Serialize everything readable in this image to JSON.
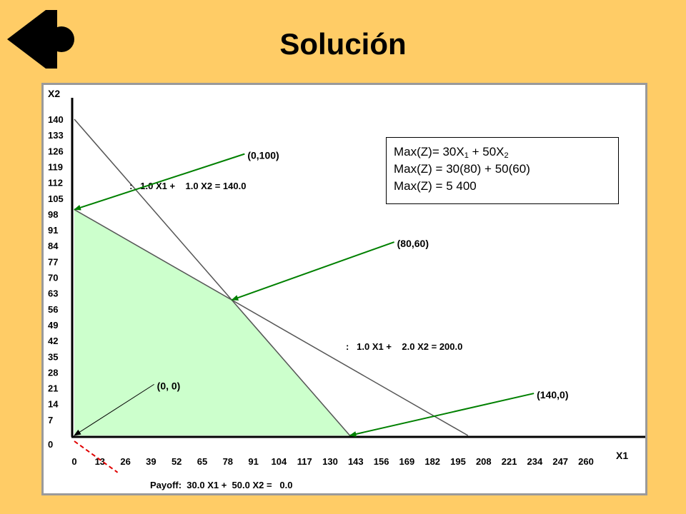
{
  "slide": {
    "title": "Solución"
  },
  "info_box": {
    "line1": {
      "pre": "Max(Z)= 30X",
      "sub1": "1",
      "mid": " + 50X",
      "sub2": "2"
    },
    "line2": "Max(Z) = 30(80) + 50(60)",
    "line3": "Max(Z) = 5 400"
  },
  "chart_data": {
    "type": "line",
    "xlabel": "X1",
    "ylabel": "X2",
    "xlim": [
      0,
      260
    ],
    "ylim": [
      0,
      140
    ],
    "xticks": [
      "0",
      "13",
      "26",
      "39",
      "52",
      "65",
      "78",
      "91",
      "104",
      "117",
      "130",
      "143",
      "156",
      "169",
      "182",
      "195",
      "208",
      "221",
      "234",
      "247",
      "260"
    ],
    "yticks": [
      "0",
      "7",
      "14",
      "21",
      "28",
      "35",
      "42",
      "49",
      "56",
      "63",
      "70",
      "77",
      "84",
      "91",
      "98",
      "105",
      "112",
      "119",
      "126",
      "133",
      "140"
    ],
    "constraints": [
      {
        "label": ":   1.0 X1 +    1.0 X2 = 140.0",
        "x": [
          0,
          140
        ],
        "y": [
          140,
          0
        ],
        "label_at": [
          28,
          109
        ]
      },
      {
        "label": ":   1.0 X1 +    2.0 X2 = 200.0",
        "x": [
          0,
          200
        ],
        "y": [
          100,
          0
        ],
        "label_at": [
          138,
          38
        ]
      }
    ],
    "payoff": {
      "label": "Payoff:  30.0 X1 +  50.0 X2 =   0.0",
      "x": [
        0,
        22
      ],
      "y": [
        0,
        -13.2
      ]
    },
    "feasible_region": {
      "x": [
        0,
        0,
        80,
        140
      ],
      "y": [
        0,
        100,
        60,
        0
      ],
      "color": "#CCFFCC"
    },
    "annotations": [
      {
        "text": "(0,100)",
        "point": [
          0,
          100
        ],
        "text_at": [
          88,
          124
        ],
        "color": "#008000"
      },
      {
        "text": "(80,60)",
        "point": [
          80,
          60
        ],
        "text_at": [
          164,
          85
        ],
        "color": "#008000"
      },
      {
        "text": "(140,0)",
        "point": [
          140,
          0
        ],
        "text_at": [
          235,
          18
        ],
        "color": "#008000"
      },
      {
        "text": "(0, 0)",
        "point": [
          0,
          0
        ],
        "text_at": [
          42,
          22
        ],
        "color": "#000000"
      }
    ]
  }
}
